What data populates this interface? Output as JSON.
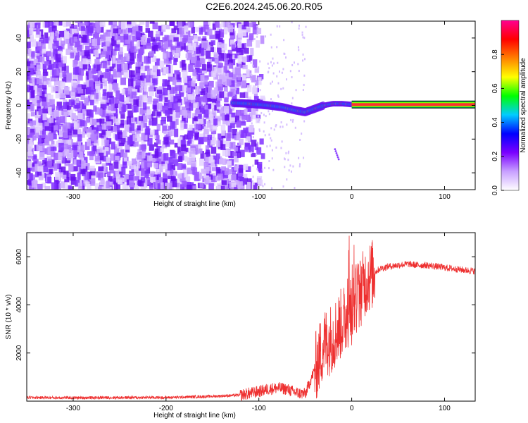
{
  "title": "C2E6.2024.245.06.20.R05",
  "chart_data": [
    {
      "type": "heatmap",
      "title": "C2E6.2024.245.06.20.R05",
      "xlabel": "Height of straight line (km)",
      "ylabel": "Frequency (Hz)",
      "xlim": [
        -350,
        133
      ],
      "ylim": [
        -50,
        50
      ],
      "xticks": [
        -300,
        -200,
        -100,
        0,
        100
      ],
      "yticks": [
        -40,
        -20,
        0,
        20,
        40
      ],
      "colorbar": {
        "label": "Normalized spectral amplitude",
        "range": [
          0.0,
          1.0
        ],
        "ticks": [
          "0.0",
          "0.2",
          "0.4",
          "0.6",
          "0.8"
        ],
        "colors": [
          "#ffffff",
          "#c8a0ff",
          "#7a00ff",
          "#0000ff",
          "#00ccff",
          "#00ff00",
          "#ffff00",
          "#ff8000",
          "#ff0000",
          "#ff0090"
        ]
      },
      "features": {
        "noise_region_x": [
          -350,
          -100
        ],
        "signal_track": {
          "x": [
            -128,
            -110,
            -90,
            -75,
            -60,
            -50,
            -40,
            -30,
            -20,
            -10,
            0,
            10,
            50,
            100,
            133
          ],
          "y": [
            1.5,
            1,
            0,
            -1,
            -3,
            -4,
            -2,
            0,
            1,
            1,
            0.5,
            0.5,
            0.5,
            0.5,
            0.5
          ]
        }
      }
    },
    {
      "type": "line",
      "xlabel": "Height of straight line (km)",
      "ylabel": "SNR (10 * v/v)",
      "xlim": [
        -350,
        133
      ],
      "ylim": [
        0,
        7000
      ],
      "xticks": [
        -300,
        -200,
        -100,
        0,
        100
      ],
      "yticks": [
        2000,
        4000,
        6000
      ],
      "color": "#ee3030",
      "series": [
        {
          "x": [
            -350,
            -300,
            -250,
            -200,
            -150,
            -120,
            -100,
            -90,
            -80,
            -70,
            -60,
            -50,
            -45,
            -40,
            -35,
            -30,
            -25,
            -20,
            -15,
            -10,
            -5,
            0,
            5,
            10,
            15,
            20,
            25,
            30,
            40,
            50,
            60,
            70,
            80,
            90,
            100,
            110,
            120,
            133
          ],
          "values": [
            150,
            140,
            150,
            150,
            200,
            250,
            400,
            500,
            550,
            500,
            350,
            300,
            800,
            1300,
            1800,
            2400,
            2500,
            2700,
            3000,
            3300,
            3500,
            3800,
            4300,
            4600,
            5000,
            5200,
            5350,
            5500,
            5600,
            5650,
            5700,
            5650,
            5650,
            5600,
            5550,
            5500,
            5450,
            5400
          ]
        }
      ]
    }
  ]
}
